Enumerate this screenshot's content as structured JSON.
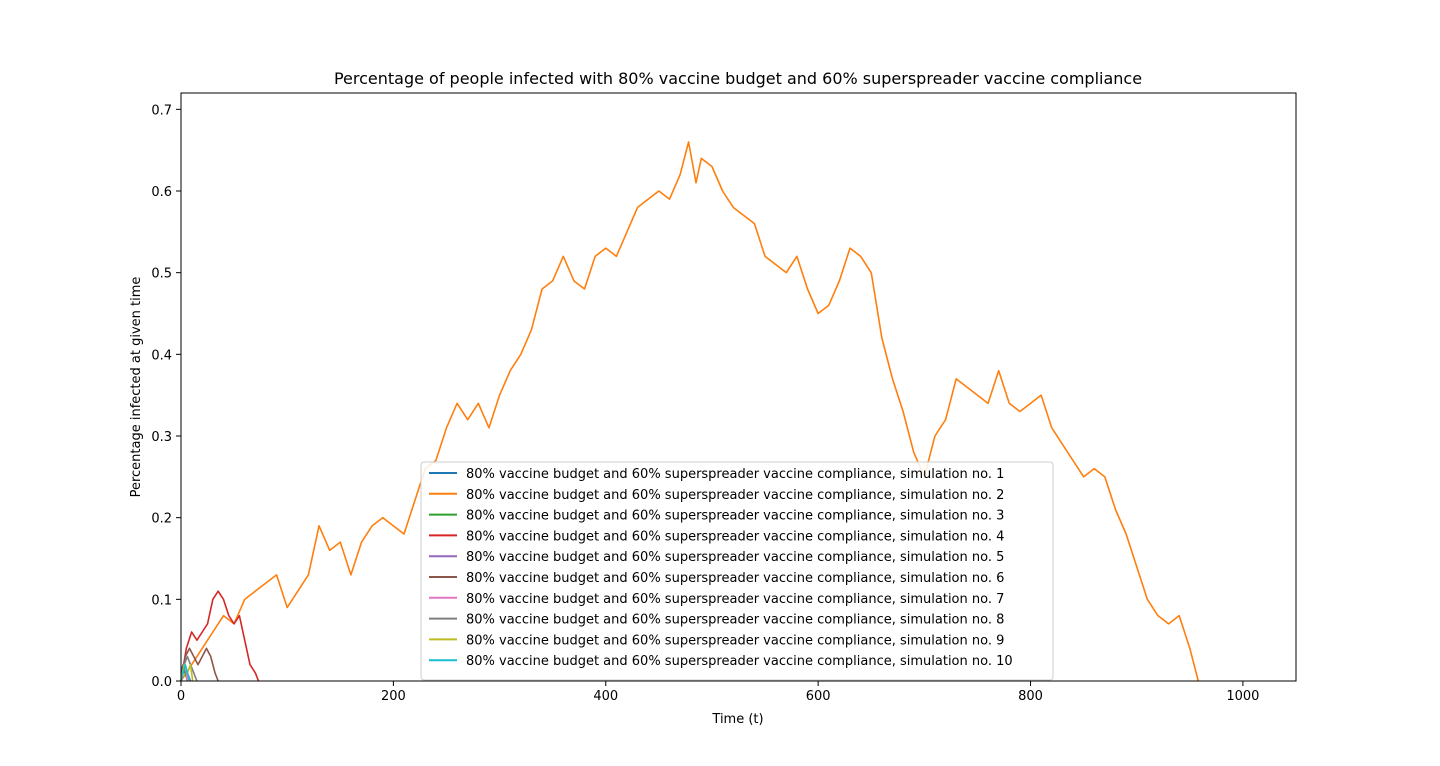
{
  "chart_data": {
    "type": "line",
    "title": "Percentage of people infected with 80% vaccine budget and 60% superspreader vaccine compliance",
    "xlabel": "Time (t)",
    "ylabel": "Percentage infected at given time",
    "xlim": [
      0,
      1050
    ],
    "ylim": [
      0,
      0.72
    ],
    "xticks": [
      0,
      200,
      400,
      600,
      800,
      1000
    ],
    "yticks": [
      0.0,
      0.1,
      0.2,
      0.3,
      0.4,
      0.5,
      0.6,
      0.7
    ],
    "xtick_labels": [
      "0",
      "200",
      "400",
      "600",
      "800",
      "1000"
    ],
    "ytick_labels": [
      "0.0",
      "0.1",
      "0.2",
      "0.3",
      "0.4",
      "0.5",
      "0.6",
      "0.7"
    ],
    "grid": false,
    "legend_position": "bottom-center",
    "series": [
      {
        "name": "80% vaccine budget and 60% superspreader vaccine compliance, simulation no. 1",
        "color": "#1f77b4",
        "x": [
          0,
          2,
          4,
          6,
          8
        ],
        "y": [
          0.01,
          0.02,
          0.01,
          0.01,
          0.0
        ]
      },
      {
        "name": "80% vaccine budget and 60% superspreader vaccine compliance, simulation no. 2",
        "color": "#ff7f0e",
        "x": [
          0,
          10,
          20,
          30,
          40,
          50,
          60,
          70,
          80,
          90,
          100,
          110,
          120,
          130,
          140,
          150,
          160,
          170,
          180,
          190,
          200,
          210,
          220,
          230,
          240,
          250,
          260,
          270,
          280,
          290,
          300,
          310,
          320,
          330,
          340,
          350,
          360,
          370,
          380,
          390,
          400,
          410,
          420,
          430,
          440,
          450,
          460,
          470,
          478,
          485,
          490,
          500,
          510,
          520,
          530,
          540,
          550,
          560,
          570,
          580,
          590,
          600,
          610,
          620,
          630,
          640,
          650,
          660,
          670,
          680,
          690,
          700,
          710,
          720,
          730,
          740,
          750,
          760,
          770,
          780,
          790,
          800,
          810,
          820,
          830,
          840,
          850,
          860,
          870,
          880,
          890,
          900,
          910,
          920,
          930,
          940,
          950,
          958
        ],
        "y": [
          0.0,
          0.02,
          0.04,
          0.06,
          0.08,
          0.07,
          0.1,
          0.11,
          0.12,
          0.13,
          0.09,
          0.11,
          0.13,
          0.19,
          0.16,
          0.17,
          0.13,
          0.17,
          0.19,
          0.2,
          0.19,
          0.18,
          0.22,
          0.26,
          0.27,
          0.31,
          0.34,
          0.32,
          0.34,
          0.31,
          0.35,
          0.38,
          0.4,
          0.43,
          0.48,
          0.49,
          0.52,
          0.49,
          0.48,
          0.52,
          0.53,
          0.52,
          0.55,
          0.58,
          0.59,
          0.6,
          0.59,
          0.62,
          0.66,
          0.61,
          0.64,
          0.63,
          0.6,
          0.58,
          0.57,
          0.56,
          0.52,
          0.51,
          0.5,
          0.52,
          0.48,
          0.45,
          0.46,
          0.49,
          0.53,
          0.52,
          0.5,
          0.42,
          0.37,
          0.33,
          0.28,
          0.25,
          0.3,
          0.32,
          0.37,
          0.36,
          0.35,
          0.34,
          0.38,
          0.34,
          0.33,
          0.34,
          0.35,
          0.31,
          0.29,
          0.27,
          0.25,
          0.26,
          0.25,
          0.21,
          0.18,
          0.14,
          0.1,
          0.08,
          0.07,
          0.08,
          0.04,
          0.0
        ]
      },
      {
        "name": "80% vaccine budget and 60% superspreader vaccine compliance, simulation no. 3",
        "color": "#2ca02c",
        "x": [
          0,
          2,
          4,
          6
        ],
        "y": [
          0.0,
          0.01,
          0.01,
          0.0
        ]
      },
      {
        "name": "80% vaccine budget and 60% superspreader vaccine compliance, simulation no. 4",
        "color": "#d62728",
        "x": [
          0,
          5,
          10,
          15,
          20,
          25,
          30,
          35,
          40,
          45,
          50,
          55,
          60,
          65,
          70,
          73
        ],
        "y": [
          0.0,
          0.04,
          0.06,
          0.05,
          0.06,
          0.07,
          0.1,
          0.11,
          0.1,
          0.08,
          0.07,
          0.08,
          0.05,
          0.02,
          0.01,
          0.0
        ]
      },
      {
        "name": "80% vaccine budget and 60% superspreader vaccine compliance, simulation no. 5",
        "color": "#9467bd",
        "x": [
          0,
          3,
          6,
          9
        ],
        "y": [
          0.0,
          0.02,
          0.01,
          0.0
        ]
      },
      {
        "name": "80% vaccine budget and 60% superspreader vaccine compliance, simulation no. 6",
        "color": "#8c564b",
        "x": [
          0,
          4,
          8,
          12,
          16,
          20,
          24,
          28,
          32,
          35
        ],
        "y": [
          0.0,
          0.03,
          0.04,
          0.03,
          0.02,
          0.03,
          0.04,
          0.03,
          0.01,
          0.0
        ]
      },
      {
        "name": "80% vaccine budget and 60% superspreader vaccine compliance, simulation no. 7",
        "color": "#e377c2",
        "x": [
          0,
          2,
          4,
          6
        ],
        "y": [
          0.0,
          0.01,
          0.02,
          0.0
        ]
      },
      {
        "name": "80% vaccine budget and 60% superspreader vaccine compliance, simulation no. 8",
        "color": "#7f7f7f",
        "x": [
          0,
          3,
          6,
          9,
          12,
          15
        ],
        "y": [
          0.0,
          0.02,
          0.03,
          0.02,
          0.01,
          0.0
        ]
      },
      {
        "name": "80% vaccine budget and 60% superspreader vaccine compliance, simulation no. 9",
        "color": "#bcbd22",
        "x": [
          0,
          3,
          6,
          9,
          11
        ],
        "y": [
          0.0,
          0.02,
          0.01,
          0.02,
          0.0
        ]
      },
      {
        "name": "80% vaccine budget and 60% superspreader vaccine compliance, simulation no. 10",
        "color": "#17becf",
        "x": [
          0,
          2,
          4,
          6,
          8
        ],
        "y": [
          0.0,
          0.01,
          0.02,
          0.01,
          0.0
        ]
      }
    ]
  }
}
